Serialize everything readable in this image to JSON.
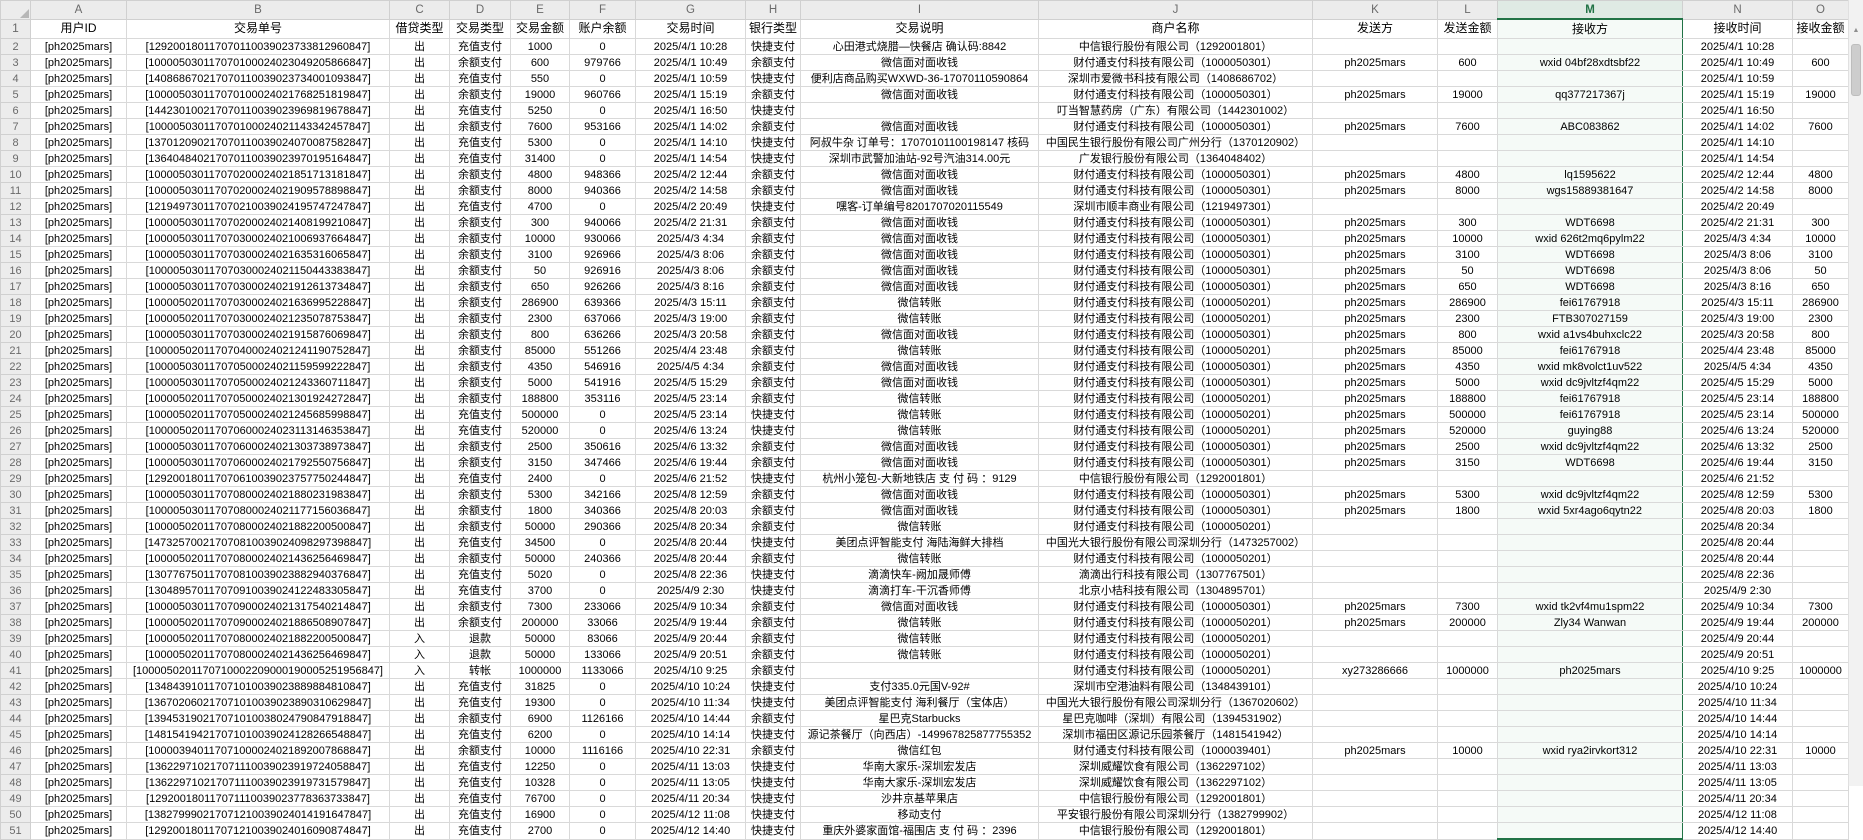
{
  "columns": {
    "letters": [
      "A",
      "B",
      "C",
      "D",
      "E",
      "F",
      "G",
      "H",
      "I",
      "J",
      "K",
      "L",
      "M",
      "N",
      "O"
    ],
    "selected_letter": "M"
  },
  "header_row_number": "1",
  "first_data_row_number": 2,
  "headers": [
    "用户ID",
    "交易单号",
    "借贷类型",
    "交易类型",
    "交易金额",
    "账户余额",
    "交易时间",
    "银行类型",
    "交易说明",
    "商户名称",
    "发送方",
    "发送金额",
    "接收方",
    "接收时间",
    "接收金额"
  ],
  "rows": [
    [
      "[ph2025mars]",
      "[129200180117070110039023733812960847]",
      "出",
      "充值支付",
      "1000",
      "0",
      "2025/4/1 10:28",
      "快捷支付",
      "心田港式烧腊—快餐店 确认码:8842",
      "中信银行股份有限公司（1292001801）",
      "",
      "",
      "",
      "2025/4/1 10:28",
      ""
    ],
    [
      "[ph2025mars]",
      "[100005030117070100024023049205866847]",
      "出",
      "余额支付",
      "600",
      "979766",
      "2025/4/1 10:49",
      "余额支付",
      "微信面对面收钱",
      "财付通支付科技有限公司（1000050301）",
      "ph2025mars",
      "600",
      "wxid 04bf28xdtsbf22",
      "2025/4/1 10:49",
      "600"
    ],
    [
      "[ph2025mars]",
      "[140868670217070110039023734001093847]",
      "出",
      "充值支付",
      "550",
      "0",
      "2025/4/1 10:59",
      "快捷支付",
      "便利店商品购买WXWD-36-17070110590864",
      "深圳市爱微书科技有限公司（1408686702）",
      "",
      "",
      "",
      "2025/4/1 10:59",
      ""
    ],
    [
      "[ph2025mars]",
      "[100005030117070100024021768251819847]",
      "出",
      "余额支付",
      "19000",
      "960766",
      "2025/4/1 15:19",
      "余额支付",
      "微信面对面收钱",
      "财付通支付科技有限公司（1000050301）",
      "ph2025mars",
      "19000",
      "qq377217367j",
      "2025/4/1 15:19",
      "19000"
    ],
    [
      "[ph2025mars]",
      "[144230100217070110039023969819678847]",
      "出",
      "充值支付",
      "5250",
      "0",
      "2025/4/1 16:50",
      "快捷支付",
      "",
      "叮当智慧药房（广东）有限公司（1442301002）",
      "",
      "",
      "",
      "2025/4/1 16:50",
      ""
    ],
    [
      "[ph2025mars]",
      "[100005030117070100024021143342457847]",
      "出",
      "余额支付",
      "7600",
      "953166",
      "2025/4/1 14:02",
      "余额支付",
      "微信面对面收钱",
      "财付通支付科技有限公司（1000050301）",
      "ph2025mars",
      "7600",
      "ABC083862",
      "2025/4/1 14:02",
      "7600"
    ],
    [
      "[ph2025mars]",
      "[137012090217070110039024070087582847]",
      "出",
      "充值支付",
      "5300",
      "0",
      "2025/4/1 14:10",
      "快捷支付",
      "阿叔牛杂 订单号：17070101100198147 核码",
      "中国民生银行股份有限公司广州分行（1370120902）",
      "",
      "",
      "",
      "2025/4/1 14:10",
      ""
    ],
    [
      "[ph2025mars]",
      "[136404840217070110039023970195164847]",
      "出",
      "充值支付",
      "31400",
      "0",
      "2025/4/1 14:54",
      "快捷支付",
      "深圳市武警加油站-92号汽油314.00元",
      "广发银行股份有限公司（1364048402）",
      "",
      "",
      "",
      "2025/4/1 14:54",
      ""
    ],
    [
      "[ph2025mars]",
      "[100005030117070200024021851713181847]",
      "出",
      "余额支付",
      "4800",
      "948366",
      "2025/4/2 12:44",
      "余额支付",
      "微信面对面收钱",
      "财付通支付科技有限公司（1000050301）",
      "ph2025mars",
      "4800",
      "lq1595622",
      "2025/4/2 12:44",
      "4800"
    ],
    [
      "[ph2025mars]",
      "[100005030117070200024021909578898847]",
      "出",
      "余额支付",
      "8000",
      "940366",
      "2025/4/2 14:58",
      "余额支付",
      "微信面对面收钱",
      "财付通支付科技有限公司（1000050301）",
      "ph2025mars",
      "8000",
      "wgs15889381647",
      "2025/4/2 14:58",
      "8000"
    ],
    [
      "[ph2025mars]",
      "[121949730117070210039024195747247847]",
      "出",
      "充值支付",
      "4700",
      "0",
      "2025/4/2 20:49",
      "快捷支付",
      "嘿客-订单编号8201707020115549",
      "深圳市顺丰商业有限公司（1219497301）",
      "",
      "",
      "",
      "2025/4/2 20:49",
      ""
    ],
    [
      "[ph2025mars]",
      "[100005030117070200024021408199210847]",
      "出",
      "余额支付",
      "300",
      "940066",
      "2025/4/2 21:31",
      "余额支付",
      "微信面对面收钱",
      "财付通支付科技有限公司（1000050301）",
      "ph2025mars",
      "300",
      "WDT6698",
      "2025/4/2 21:31",
      "300"
    ],
    [
      "[ph2025mars]",
      "[100005030117070300024021006937664847]",
      "出",
      "余额支付",
      "10000",
      "930066",
      "2025/4/3 4:34",
      "余额支付",
      "微信面对面收钱",
      "财付通支付科技有限公司（1000050301）",
      "ph2025mars",
      "10000",
      "wxid 626t2mq6pylm22",
      "2025/4/3 4:34",
      "10000"
    ],
    [
      "[ph2025mars]",
      "[100005030117070300024021635316065847]",
      "出",
      "余额支付",
      "3100",
      "926966",
      "2025/4/3 8:06",
      "余额支付",
      "微信面对面收钱",
      "财付通支付科技有限公司（1000050301）",
      "ph2025mars",
      "3100",
      "WDT6698",
      "2025/4/3 8:06",
      "3100"
    ],
    [
      "[ph2025mars]",
      "[100005030117070300024021150443383847]",
      "出",
      "余额支付",
      "50",
      "926916",
      "2025/4/3 8:06",
      "余额支付",
      "微信面对面收钱",
      "财付通支付科技有限公司（1000050301）",
      "ph2025mars",
      "50",
      "WDT6698",
      "2025/4/3 8:06",
      "50"
    ],
    [
      "[ph2025mars]",
      "[100005030117070300024021912613734847]",
      "出",
      "余额支付",
      "650",
      "926266",
      "2025/4/3 8:16",
      "余额支付",
      "微信面对面收钱",
      "财付通支付科技有限公司（1000050301）",
      "ph2025mars",
      "650",
      "WDT6698",
      "2025/4/3 8:16",
      "650"
    ],
    [
      "[ph2025mars]",
      "[100005020117070300024021636995228847]",
      "出",
      "余额支付",
      "286900",
      "639366",
      "2025/4/3 15:11",
      "余额支付",
      "微信转账",
      "财付通支付科技有限公司（1000050201）",
      "ph2025mars",
      "286900",
      "fei61767918",
      "2025/4/3 15:11",
      "286900"
    ],
    [
      "[ph2025mars]",
      "[100005020117070300024021235078753847]",
      "出",
      "余额支付",
      "2300",
      "637066",
      "2025/4/3 19:00",
      "余额支付",
      "微信转账",
      "财付通支付科技有限公司（1000050201）",
      "ph2025mars",
      "2300",
      "FTB307027159",
      "2025/4/3 19:00",
      "2300"
    ],
    [
      "[ph2025mars]",
      "[100005030117070300024021915876069847]",
      "出",
      "余额支付",
      "800",
      "636266",
      "2025/4/3 20:58",
      "余额支付",
      "微信面对面收钱",
      "财付通支付科技有限公司（1000050301）",
      "ph2025mars",
      "800",
      "wxid a1vs4buhxclc22",
      "2025/4/3 20:58",
      "800"
    ],
    [
      "[ph2025mars]",
      "[100005020117070400024021241190752847]",
      "出",
      "余额支付",
      "85000",
      "551266",
      "2025/4/4 23:48",
      "余额支付",
      "微信转账",
      "财付通支付科技有限公司（1000050201）",
      "ph2025mars",
      "85000",
      "fei61767918",
      "2025/4/4 23:48",
      "85000"
    ],
    [
      "[ph2025mars]",
      "[100005030117070500024021159599222847]",
      "出",
      "余额支付",
      "4350",
      "546916",
      "2025/4/5 4:34",
      "余额支付",
      "微信面对面收钱",
      "财付通支付科技有限公司（1000050301）",
      "ph2025mars",
      "4350",
      "wxid mk8volct1uv522",
      "2025/4/5 4:34",
      "4350"
    ],
    [
      "[ph2025mars]",
      "[100005030117070500024021243360711847]",
      "出",
      "余额支付",
      "5000",
      "541916",
      "2025/4/5 15:29",
      "余额支付",
      "微信面对面收钱",
      "财付通支付科技有限公司（1000050301）",
      "ph2025mars",
      "5000",
      "wxid dc9jvltzf4qm22",
      "2025/4/5 15:29",
      "5000"
    ],
    [
      "[ph2025mars]",
      "[100005020117070500024021301924272847]",
      "出",
      "余额支付",
      "188800",
      "353116",
      "2025/4/5 23:14",
      "余额支付",
      "微信转账",
      "财付通支付科技有限公司（1000050201）",
      "ph2025mars",
      "188800",
      "fei61767918",
      "2025/4/5 23:14",
      "188800"
    ],
    [
      "[ph2025mars]",
      "[100005020117070500024021245685998847]",
      "出",
      "充值支付",
      "500000",
      "0",
      "2025/4/5 23:14",
      "快捷支付",
      "微信转账",
      "财付通支付科技有限公司（1000050201）",
      "ph2025mars",
      "500000",
      "fei61767918",
      "2025/4/5 23:14",
      "500000"
    ],
    [
      "[ph2025mars]",
      "[100005020117070600024023113146353847]",
      "出",
      "充值支付",
      "520000",
      "0",
      "2025/4/6 13:24",
      "快捷支付",
      "微信转账",
      "财付通支付科技有限公司（1000050201）",
      "ph2025mars",
      "520000",
      "guying88",
      "2025/4/6 13:24",
      "520000"
    ],
    [
      "[ph2025mars]",
      "[100005030117070600024021303738973847]",
      "出",
      "余额支付",
      "2500",
      "350616",
      "2025/4/6 13:32",
      "余额支付",
      "微信面对面收钱",
      "财付通支付科技有限公司（1000050301）",
      "ph2025mars",
      "2500",
      "wxid dc9jvltzf4qm22",
      "2025/4/6 13:32",
      "2500"
    ],
    [
      "[ph2025mars]",
      "[100005030117070600024021792550756847]",
      "出",
      "余额支付",
      "3150",
      "347466",
      "2025/4/6 19:44",
      "余额支付",
      "微信面对面收钱",
      "财付通支付科技有限公司（1000050301）",
      "ph2025mars",
      "3150",
      "WDT6698",
      "2025/4/6 19:44",
      "3150"
    ],
    [
      "[ph2025mars]",
      "[129200180117070610039023757750244847]",
      "出",
      "充值支付",
      "2400",
      "0",
      "2025/4/6 21:52",
      "快捷支付",
      "杭州小笼包-大新地铁店 支 付 码 ：9129",
      "中信银行股份有限公司（1292001801）",
      "",
      "",
      "",
      "2025/4/6 21:52",
      ""
    ],
    [
      "[ph2025mars]",
      "[100005030117070800024021880231983847]",
      "出",
      "余额支付",
      "5300",
      "342166",
      "2025/4/8 12:59",
      "余额支付",
      "微信面对面收钱",
      "财付通支付科技有限公司（1000050301）",
      "ph2025mars",
      "5300",
      "wxid dc9jvltzf4qm22",
      "2025/4/8 12:59",
      "5300"
    ],
    [
      "[ph2025mars]",
      "[100005030117070800024021177156036847]",
      "出",
      "余额支付",
      "1800",
      "340366",
      "2025/4/8 20:03",
      "余额支付",
      "微信面对面收钱",
      "财付通支付科技有限公司（1000050301）",
      "ph2025mars",
      "1800",
      "wxid 5xr4ago6qytn22",
      "2025/4/8 20:03",
      "1800"
    ],
    [
      "[ph2025mars]",
      "[100005020117070800024021882200500847]",
      "出",
      "余额支付",
      "50000",
      "290366",
      "2025/4/8 20:34",
      "余额支付",
      "微信转账",
      "财付通支付科技有限公司（1000050201）",
      "",
      "",
      "",
      "2025/4/8 20:34",
      ""
    ],
    [
      "[ph2025mars]",
      "[147325700217070810039024098297398847]",
      "出",
      "充值支付",
      "34500",
      "0",
      "2025/4/8 20:44",
      "快捷支付",
      "美团点评智能支付 海陆海鲜大排档",
      "中国光大银行股份有限公司深圳分行（1473257002）",
      "",
      "",
      "",
      "2025/4/8 20:44",
      ""
    ],
    [
      "[ph2025mars]",
      "[100005020117070800024021436256469847]",
      "出",
      "余额支付",
      "50000",
      "240366",
      "2025/4/8 20:44",
      "余额支付",
      "微信转账",
      "财付通支付科技有限公司（1000050201）",
      "",
      "",
      "",
      "2025/4/8 20:44",
      ""
    ],
    [
      "[ph2025mars]",
      "[130776750117070810039023882940376847]",
      "出",
      "充值支付",
      "5020",
      "0",
      "2025/4/8 22:36",
      "快捷支付",
      "滴滴快车-阙加晟师傅",
      "滴滴出行科技有限公司（1307767501）",
      "",
      "",
      "",
      "2025/4/8 22:36",
      ""
    ],
    [
      "[ph2025mars]",
      "[130489570117070910039024122483305847]",
      "出",
      "充值支付",
      "3700",
      "0",
      "2025/4/9 2:30",
      "快捷支付",
      "滴滴打车-干沉香师傅",
      "北京小桔科技有限公司（1304895701）",
      "",
      "",
      "",
      "2025/4/9 2:30",
      ""
    ],
    [
      "[ph2025mars]",
      "[100005030117070900024021317540214847]",
      "出",
      "余额支付",
      "7300",
      "233066",
      "2025/4/9 10:34",
      "余额支付",
      "微信面对面收钱",
      "财付通支付科技有限公司（1000050301）",
      "ph2025mars",
      "7300",
      "wxid tk2vf4mu1spm22",
      "2025/4/9 10:34",
      "7300"
    ],
    [
      "[ph2025mars]",
      "[100005020117070900024021886508907847]",
      "出",
      "余额支付",
      "200000",
      "33066",
      "2025/4/9 19:44",
      "余额支付",
      "微信转账",
      "财付通支付科技有限公司（1000050201）",
      "ph2025mars",
      "200000",
      "Zly34 Wanwan",
      "2025/4/9 19:44",
      "200000"
    ],
    [
      "[ph2025mars]",
      "[100005020117070800024021882200500847]",
      "入",
      "退款",
      "50000",
      "83066",
      "2025/4/9 20:44",
      "余额支付",
      "微信转账",
      "财付通支付科技有限公司（1000050201）",
      "",
      "",
      "",
      "2025/4/9 20:44",
      ""
    ],
    [
      "[ph2025mars]",
      "[100005020117070800024021436256469847]",
      "入",
      "退款",
      "50000",
      "133066",
      "2025/4/9 20:51",
      "余额支付",
      "微信转账",
      "财付通支付科技有限公司（1000050201）",
      "",
      "",
      "",
      "2025/4/9 20:51",
      ""
    ],
    [
      "[ph2025mars]",
      "[1000050201170710002209000190005251956847]",
      "入",
      "转帐",
      "1000000",
      "1133066",
      "2025/4/10 9:25",
      "余额支付",
      "",
      "财付通支付科技有限公司（1000050201）",
      "xy273286666",
      "1000000",
      "ph2025mars",
      "2025/4/10 9:25",
      "1000000"
    ],
    [
      "[ph2025mars]",
      "[134843910117071010039023889884810847]",
      "出",
      "充值支付",
      "31825",
      "0",
      "2025/4/10 10:24",
      "快捷支付",
      "支付335.0元国V-92#",
      "深圳市空港油料有限公司（1348439101）",
      "",
      "",
      "",
      "2025/4/10 10:24",
      ""
    ],
    [
      "[ph2025mars]",
      "[136702060217071010039023890310629847]",
      "出",
      "充值支付",
      "19300",
      "0",
      "2025/4/10 11:34",
      "快捷支付",
      "美团点评智能支付 海利餐厅（宝体店）",
      "中国光大银行股份有限公司深圳分行（1367020602）",
      "",
      "",
      "",
      "2025/4/10 11:34",
      ""
    ],
    [
      "[ph2025mars]",
      "[139453190217071010038024790847918847]",
      "出",
      "余额支付",
      "6900",
      "1126166",
      "2025/4/10 14:44",
      "余额支付",
      "星巴克Starbucks",
      "星巴克咖啡（深圳）有限公司（1394531902）",
      "",
      "",
      "",
      "2025/4/10 14:44",
      ""
    ],
    [
      "[ph2025mars]",
      "[148154194217071010039024128266548847]",
      "出",
      "充值支付",
      "6200",
      "0",
      "2025/4/10 14:14",
      "快捷支付",
      "源记茶餐厅（向西店）-149967825877755352",
      "深圳市福田区源记乐园茶餐厅（1481541942）",
      "",
      "",
      "",
      "2025/4/10 14:14",
      ""
    ],
    [
      "[ph2025mars]",
      "[100003940117071000024021892007868847]",
      "出",
      "余额支付",
      "10000",
      "1116166",
      "2025/4/10 22:31",
      "余额支付",
      "微信红包",
      "财付通支付科技有限公司（1000039401）",
      "ph2025mars",
      "10000",
      "wxid rya2irvkort312",
      "2025/4/10 22:31",
      "10000"
    ],
    [
      "[ph2025mars]",
      "[136229710217071110039023919724058847]",
      "出",
      "充值支付",
      "12250",
      "0",
      "2025/4/11 13:03",
      "快捷支付",
      "华南大家乐-深圳宏发店",
      "深圳威耀饮食有限公司（1362297102）",
      "",
      "",
      "",
      "2025/4/11 13:03",
      ""
    ],
    [
      "[ph2025mars]",
      "[136229710217071110039023919731579847]",
      "出",
      "充值支付",
      "10328",
      "0",
      "2025/4/11 13:05",
      "快捷支付",
      "华南大家乐-深圳宏发店",
      "深圳威耀饮食有限公司（1362297102）",
      "",
      "",
      "",
      "2025/4/11 13:05",
      ""
    ],
    [
      "[ph2025mars]",
      "[129200180117071110039023778363733847]",
      "出",
      "充值支付",
      "76700",
      "0",
      "2025/4/11 20:34",
      "快捷支付",
      "沙井京基苹果店",
      "中信银行股份有限公司（1292001801）",
      "",
      "",
      "",
      "2025/4/11 20:34",
      ""
    ],
    [
      "[ph2025mars]",
      "[138279990217071210039024014191647847]",
      "出",
      "充值支付",
      "16900",
      "0",
      "2025/4/12 11:08",
      "快捷支付",
      "移动支付",
      "平安银行股份有限公司深圳分行（1382799902）",
      "",
      "",
      "",
      "2025/4/12 11:08",
      ""
    ],
    [
      "[ph2025mars]",
      "[129200180117071210039024016090874847]",
      "出",
      "充值支付",
      "2700",
      "0",
      "2025/4/12 14:40",
      "快捷支付",
      "重庆外婆家面馆-福围店 支 付 码 ：2396",
      "中信银行股份有限公司（1292001801）",
      "",
      "",
      "",
      "2025/4/12 14:40",
      ""
    ]
  ],
  "scrollbar": {
    "up_arrow": "▲"
  },
  "colors": {
    "accent_green": "#217346",
    "grid_line": "#d9d9d9",
    "header_bg": "#ececec",
    "selected_header_bg": "#dfeae4"
  }
}
